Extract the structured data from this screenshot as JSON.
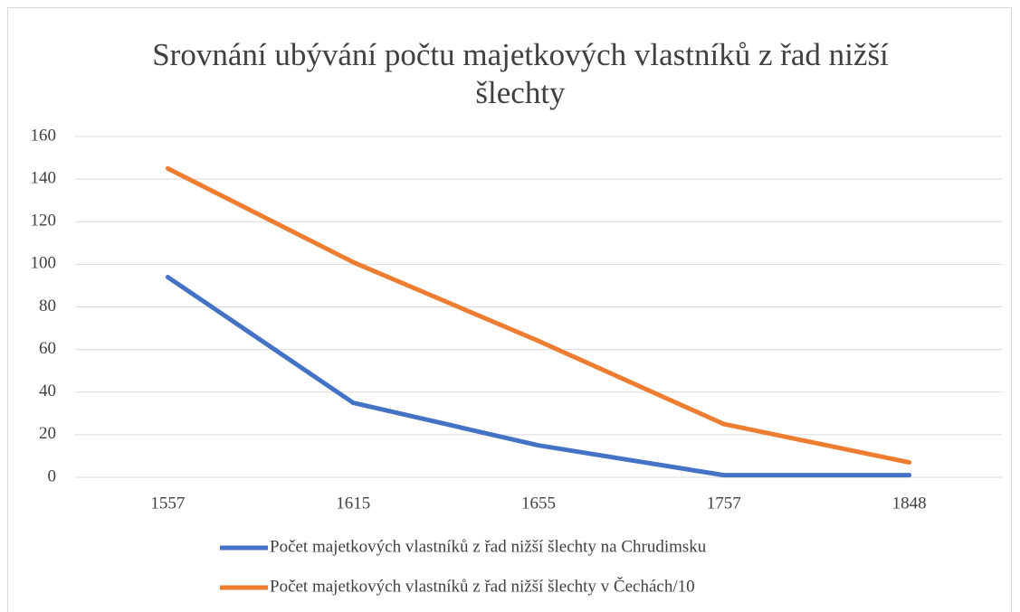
{
  "chart_data": {
    "type": "line",
    "title": "Srovnání ubývání počtu majetkových vlastníků z řad nižší šlechty",
    "categories": [
      "1557",
      "1615",
      "1655",
      "1757",
      "1848"
    ],
    "series": [
      {
        "name": "Počet majetkových vlastníků z řad nižší šlechty na Chrudimsku",
        "color": "#4472c4",
        "values": [
          94,
          35,
          15,
          1,
          1
        ]
      },
      {
        "name": "Počet majetkových vlastníků z řad nižší šlechty v Čechách/10",
        "color": "#ed7d31",
        "values": [
          145,
          101,
          64,
          25,
          7
        ]
      }
    ],
    "ylim": [
      0,
      160
    ],
    "yticks": [
      0,
      20,
      40,
      60,
      80,
      100,
      120,
      140,
      160
    ],
    "grid": true,
    "legend": "bottom"
  }
}
